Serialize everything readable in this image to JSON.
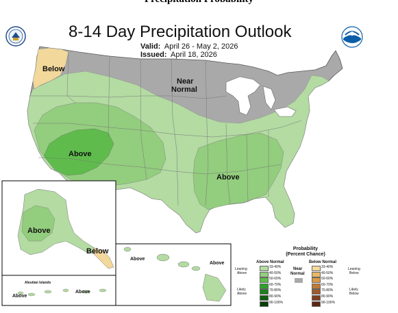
{
  "header": {
    "title": "Precipitation Probability"
  },
  "map": {
    "title": "8-14 Day Precipitation Outlook",
    "valid_label": "Valid:",
    "valid_value": "April 26 - May 2, 2026",
    "issued_label": "Issued:",
    "issued_value": "April 18, 2026",
    "region_labels": {
      "below_nw": "Below",
      "near_normal_1": "Near",
      "near_normal_2": "Normal",
      "above_sw": "Above",
      "above_se": "Above",
      "alaska_above": "Above",
      "alaska_below": "Below",
      "hawaii_above_1": "Above",
      "hawaii_above_2": "Above",
      "aleutian_above": "Above",
      "aleutian_above_2": "Above",
      "aleutian_islands": "Aleutian Islands"
    },
    "colors": {
      "ocean": "#ffffff",
      "land": "#ffffff",
      "near_normal": "#a9a9a9",
      "above_33_40": "#b3dba2",
      "above_40_50": "#93cd7e",
      "above_50_60": "#5fbc4c",
      "above_60_70": "#2fa12c",
      "below_33_40": "#f2d89a"
    }
  },
  "legend": {
    "title_1": "Probability",
    "title_2": "(Percent Chance)",
    "above_header": "Above Normal",
    "below_header": "Below Normal",
    "near_label_1": "Near",
    "near_label_2": "Normal",
    "leaning_above_1": "Leaning",
    "leaning_above_2": "Above",
    "likely_above_1": "Likely",
    "likely_above_2": "Above",
    "leaning_below_1": "Leaning",
    "leaning_below_2": "Below",
    "likely_below_1": "Likely",
    "likely_below_2": "Below",
    "above_bins": [
      {
        "label": "33-40%",
        "color": "#b3dba2"
      },
      {
        "label": "40-50%",
        "color": "#93cd7e"
      },
      {
        "label": "50-60%",
        "color": "#5fbc4c"
      },
      {
        "label": "60-70%",
        "color": "#2fa12c"
      },
      {
        "label": "70-80%",
        "color": "#1e7f1e"
      },
      {
        "label": "80-90%",
        "color": "#125c12"
      },
      {
        "label": "90-100%",
        "color": "#0a3d0a"
      }
    ],
    "below_bins": [
      {
        "label": "33-40%",
        "color": "#f2d89a"
      },
      {
        "label": "40-50%",
        "color": "#e8b865"
      },
      {
        "label": "50-60%",
        "color": "#d99a46"
      },
      {
        "label": "60-70%",
        "color": "#c07a35"
      },
      {
        "label": "70-80%",
        "color": "#9f5b2c"
      },
      {
        "label": "80-90%",
        "color": "#7c3f1f"
      },
      {
        "label": "90-100%",
        "color": "#5a2715"
      }
    ],
    "near_color": "#a9a9a9"
  }
}
